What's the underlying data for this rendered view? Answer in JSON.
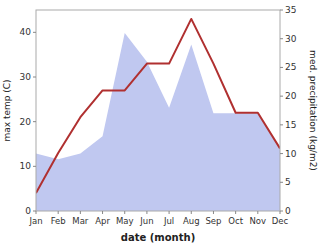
{
  "chart_data": {
    "type": "line",
    "categories": [
      "Jan",
      "Feb",
      "Mar",
      "Apr",
      "May",
      "Jun",
      "Jul",
      "Aug",
      "Sep",
      "Oct",
      "Nov",
      "Dec"
    ],
    "xlabel": "date (month)",
    "ylabel": "max temp (C)",
    "y2label": "med. precipitation (kg/m2)",
    "series": [
      {
        "type": "area",
        "axis": "y2",
        "color": "#c0c8f0",
        "values": [
          10,
          9,
          10,
          13,
          31,
          26,
          18,
          29,
          17,
          17,
          17,
          11
        ]
      },
      {
        "type": "line",
        "color": "#b03030",
        "values": [
          4,
          13,
          21,
          27,
          27,
          33,
          33,
          43,
          33,
          22,
          22,
          14
        ]
      }
    ],
    "ylim": [
      0,
      45
    ],
    "yticks": [
      0,
      10,
      20,
      30,
      40
    ],
    "y2lim": [
      0,
      35
    ],
    "y2ticks": [
      0,
      5,
      10,
      15,
      20,
      25,
      30,
      35
    ],
    "grid": false
  }
}
